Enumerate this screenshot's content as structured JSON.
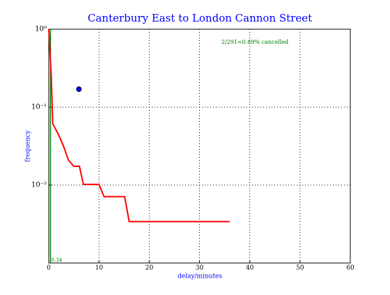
{
  "chart_data": {
    "type": "line",
    "title": "Canterbury East to London Cannon Street",
    "xlabel": "delay/minutes",
    "ylabel": "frequency",
    "annotation": "2/291=0.69% cancelled",
    "log_y": true,
    "grid": true,
    "xlim": [
      0,
      60
    ],
    "xticks": [
      0,
      10,
      20,
      30,
      40,
      50,
      60
    ],
    "ylim": [
      0.001,
      1
    ],
    "yticks": [
      {
        "value": 1,
        "label": "10⁰"
      },
      {
        "value": 0.1,
        "label": "10⁻¹"
      },
      {
        "value": 0.01,
        "label": "10⁻²"
      }
    ],
    "median": {
      "x": 0.34,
      "color": "#008000"
    },
    "series": [
      {
        "style": "line",
        "color": "#ff0000",
        "x": [
          0,
          0.5,
          0.8,
          1.9,
          2.9,
          3.9,
          5,
          6.1,
          6.9,
          10,
          11,
          15.1,
          16,
          36
        ],
        "values": [
          1,
          0.25,
          0.061,
          0.045,
          0.032,
          0.021,
          0.0174,
          0.0174,
          0.0102,
          0.0102,
          0.0071,
          0.0071,
          0.0034,
          0.0034
        ]
      },
      {
        "style": "point",
        "color": "#0000ff",
        "x": [
          6
        ],
        "values": [
          0.17
        ]
      }
    ]
  }
}
